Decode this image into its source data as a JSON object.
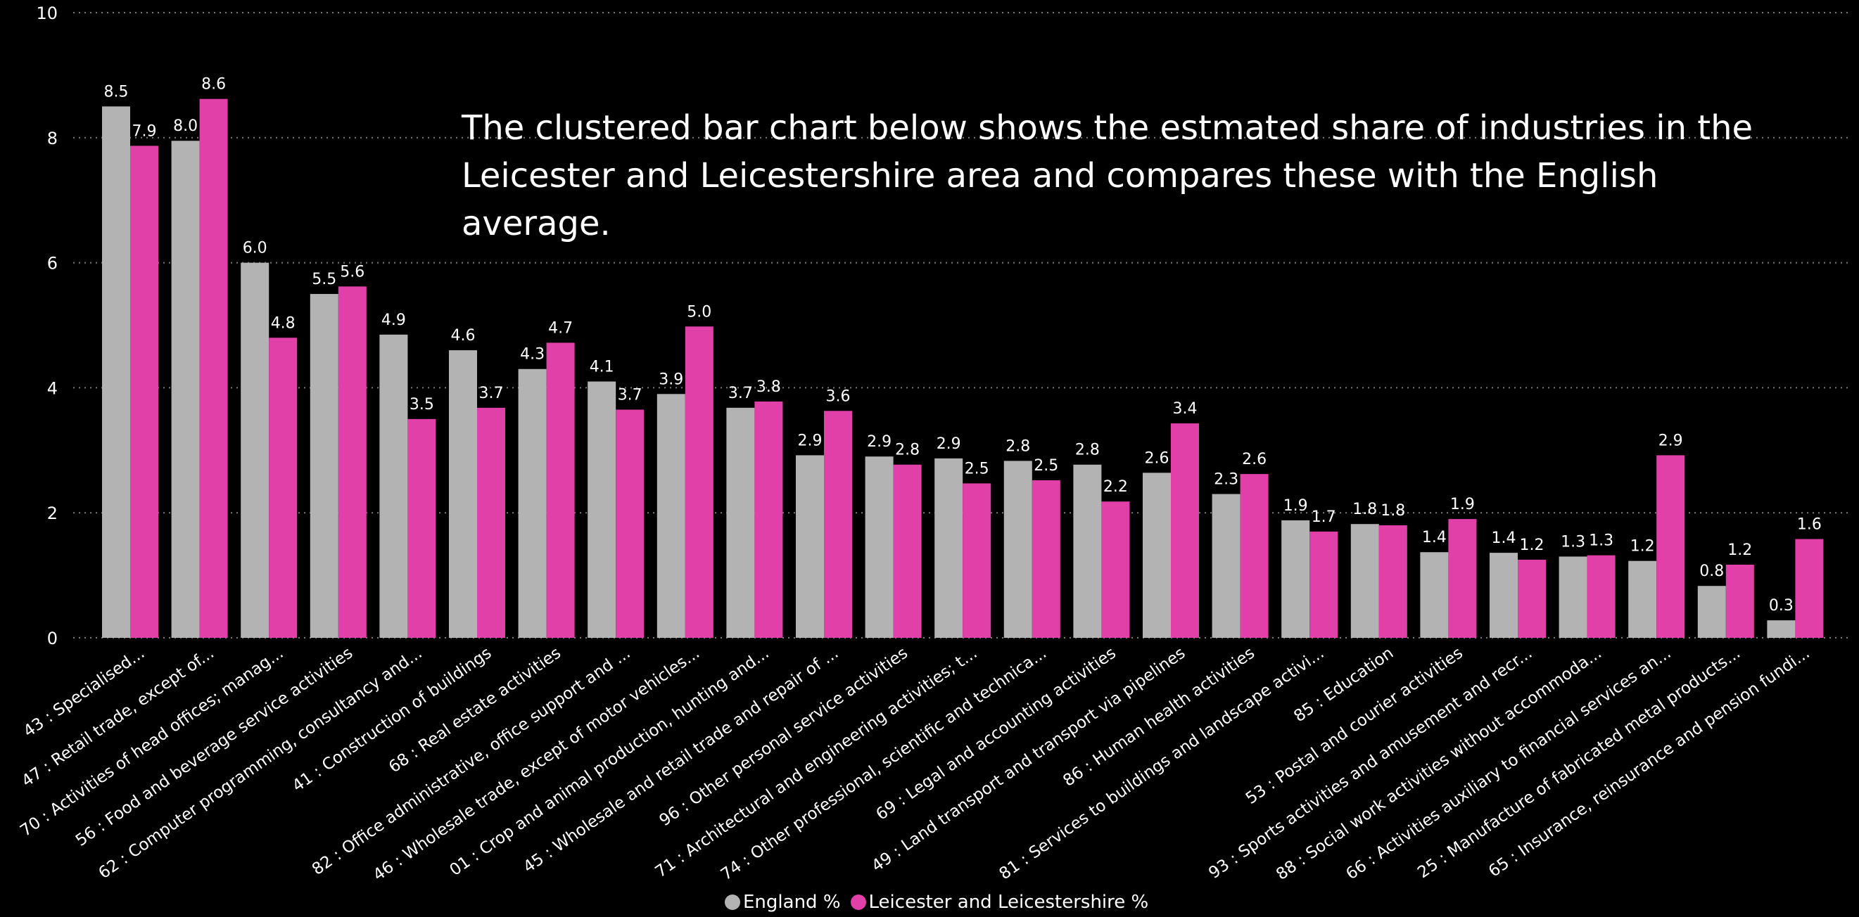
{
  "headline": "The clustered bar chart below shows the estmated share of industries in the Leicester and Leicestershire area and compares these with the English average.",
  "chart_data": {
    "type": "bar",
    "title": "",
    "xlabel": "",
    "ylabel": "",
    "ylim": [
      0,
      10
    ],
    "yticks": [
      "0",
      "2",
      "4",
      "6",
      "8",
      "10"
    ],
    "grid": true,
    "legend_position": "bottom-center",
    "categories": [
      "43 : Specialised...",
      "47 : Retail trade, except of...",
      "70 : Activities of head offices; manag...",
      "56 : Food and beverage service activities",
      "62 : Computer programming, consultancy and...",
      "41 : Construction of buildings",
      "68 : Real estate activities",
      "82 : Office administrative, office support and ...",
      "46 : Wholesale trade, except of motor vehicles...",
      "01 : Crop and animal production, hunting and...",
      "45 : Wholesale and retail trade and repair of ...",
      "96 : Other personal service activities",
      "71 : Architectural and engineering activities; t...",
      "74 : Other professional, scientific and technica...",
      "69 : Legal and accounting activities",
      "49 : Land transport and transport via pipelines",
      "86 : Human health activities",
      "81 : Services to buildings and landscape activi...",
      "85 : Education",
      "53 : Postal and courier activities",
      "93 : Sports activities and amusement and recr...",
      "88 : Social work activities without accommoda...",
      "66 : Activities auxiliary to financial services an...",
      "25 : Manufacture of fabricated metal products...",
      "65 : Insurance, reinsurance and pension fundi..."
    ],
    "series": [
      {
        "name": "England %",
        "color": "#b3b3b3",
        "values": [
          8.5,
          7.95,
          6.0,
          5.5,
          4.85,
          4.6,
          4.3,
          4.1,
          3.9,
          3.68,
          2.92,
          2.9,
          2.87,
          2.83,
          2.77,
          2.64,
          2.3,
          1.88,
          1.82,
          1.37,
          1.36,
          1.3,
          1.23,
          0.83,
          0.28
        ],
        "labels": [
          "8.5",
          "8.0",
          "6.0",
          "5.5",
          "4.9",
          "4.6",
          "4.3",
          "4.1",
          "3.9",
          "3.7",
          "2.9",
          "2.9",
          "2.9",
          "2.8",
          "2.8",
          "2.6",
          "2.3",
          "1.9",
          "1.8",
          "1.4",
          "1.4",
          "1.3",
          "1.2",
          "0.8",
          "0.3"
        ]
      },
      {
        "name": "Leicester and Leicestershire %",
        "color": "#e040a8",
        "values": [
          7.87,
          8.62,
          4.8,
          5.62,
          3.5,
          3.68,
          4.72,
          3.65,
          4.98,
          3.78,
          3.63,
          2.77,
          2.47,
          2.52,
          2.18,
          3.43,
          2.62,
          1.7,
          1.8,
          1.9,
          1.25,
          1.32,
          2.92,
          1.17,
          1.58
        ],
        "labels": [
          "7.9",
          "8.6",
          "4.8",
          "5.6",
          "3.5",
          "3.7",
          "4.7",
          "3.7",
          "5.0",
          "3.8",
          "3.6",
          "2.8",
          "2.5",
          "2.5",
          "2.2",
          "3.4",
          "2.6",
          "1.7",
          "1.8",
          "1.9",
          "1.2",
          "1.3",
          "2.9",
          "1.2",
          "1.6"
        ]
      }
    ]
  }
}
